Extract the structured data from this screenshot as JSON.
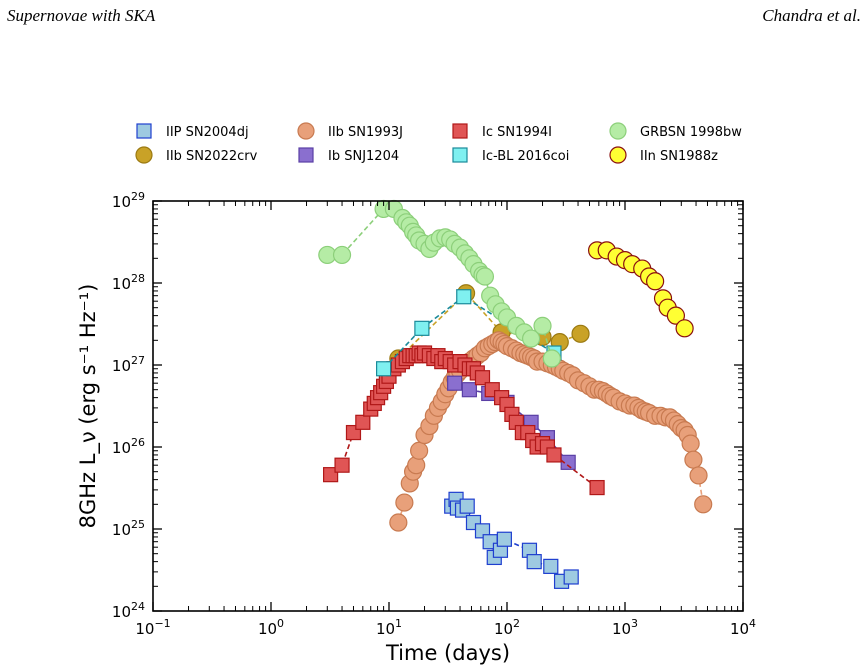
{
  "header": {
    "left": "Supernovae with SKA",
    "right": "Chandra et al."
  },
  "chart_data": {
    "type": "scatter",
    "title": "",
    "xlabel": "Time (days)",
    "ylabel": "8GHz L_ν (erg s⁻¹ Hz⁻¹)",
    "xscale": "log",
    "yscale": "log",
    "xlim": [
      0.1,
      10000
    ],
    "ylim": [
      1e+24,
      1e+29
    ],
    "x_ticks": [
      "10^-1",
      "10^0",
      "10^1",
      "10^2",
      "10^3",
      "10^4"
    ],
    "y_ticks": [
      "10^24",
      "10^25",
      "10^26",
      "10^27",
      "10^28",
      "10^29"
    ],
    "grid": false,
    "legend_position": "top",
    "series": [
      {
        "name": "IIP SN2004dj",
        "marker": "square",
        "color": "#9ecae1",
        "edge": "#1f3fcf",
        "line": "#1f3fcf",
        "x": [
          34,
          37,
          38,
          42,
          46,
          52,
          62,
          72,
          78,
          88,
          95,
          155,
          170,
          235,
          290,
          350
        ],
        "y": [
          1.9e+25,
          2.3e+25,
          1.8e+25,
          1.7e+25,
          1.9e+25,
          1.2e+25,
          9.5e+24,
          7e+24,
          4.5e+24,
          5.5e+24,
          7.5e+24,
          5.5e+24,
          4e+24,
          3.5e+24,
          2.3e+24,
          2.6e+24
        ]
      },
      {
        "name": "IIb SN2022crv",
        "marker": "circle",
        "color": "#c9a227",
        "edge": "#9b7a12",
        "line": "#c9a227",
        "x": [
          12,
          45,
          90,
          200,
          280,
          420
        ],
        "y": [
          1.2e+27,
          7.5e+27,
          2.5e+27,
          2.2e+27,
          1.9e+27,
          2.4e+27
        ]
      },
      {
        "name": "IIb SN1993J",
        "marker": "circle",
        "color": "#e8a07a",
        "edge": "#c87a50",
        "line": "#e8a07a",
        "x": [
          12,
          13.5,
          15,
          16,
          17,
          18,
          20,
          22,
          24,
          26,
          28,
          30,
          32,
          34,
          36,
          38,
          40,
          44,
          48,
          52,
          56,
          60,
          65,
          70,
          75,
          80,
          85,
          90,
          95,
          100,
          110,
          120,
          130,
          140,
          150,
          160,
          170,
          180,
          200,
          220,
          240,
          260,
          280,
          300,
          330,
          360,
          400,
          450,
          500,
          550,
          600,
          650,
          700,
          750,
          800,
          900,
          1000,
          1100,
          1200,
          1300,
          1400,
          1500,
          1600,
          1800,
          2000,
          2200,
          2400,
          2600,
          2800,
          3000,
          3200,
          3400,
          3600,
          3800,
          4200,
          4600
        ],
        "y": [
          1.2e+25,
          2.1e+25,
          3.6e+25,
          5e+25,
          6e+25,
          9e+25,
          1.4e+26,
          1.8e+26,
          2.4e+26,
          3e+26,
          3.6e+26,
          4.4e+26,
          5.2e+26,
          6.2e+26,
          7e+26,
          7.8e+26,
          8.5e+26,
          1e+27,
          1.1e+27,
          1.2e+27,
          1.3e+27,
          1.4e+27,
          1.6e+27,
          1.7e+27,
          1.8e+27,
          1.9e+27,
          2e+27,
          1.9e+27,
          1.8e+27,
          1.7e+27,
          1.6e+27,
          1.5e+27,
          1.4e+27,
          1.35e+27,
          1.3e+27,
          1.25e+27,
          1.2e+27,
          1.1e+27,
          1.1e+27,
          1.05e+27,
          1e+27,
          9.5e+26,
          9e+26,
          8.5e+26,
          8e+26,
          7.5e+26,
          6.5e+26,
          6e+26,
          5.5e+26,
          5e+26,
          5e+26,
          4.8e+26,
          4.5e+26,
          4.2e+26,
          4e+26,
          3.6e+26,
          3.4e+26,
          3.2e+26,
          3.2e+26,
          3e+26,
          2.8e+26,
          2.7e+26,
          2.6e+26,
          2.4e+26,
          2.4e+26,
          2.3e+26,
          2.3e+26,
          2.1e+26,
          1.9e+26,
          1.7e+26,
          1.6e+26,
          1.4e+26,
          1.1e+26,
          7e+25,
          4.5e+25,
          2e+25
        ]
      },
      {
        "name": "Ib SNJ1204",
        "marker": "square",
        "color": "#8a6fcf",
        "edge": "#5a3fa5",
        "line": "#5a3fa5",
        "x": [
          36,
          48,
          70,
          100,
          160,
          220,
          330
        ],
        "y": [
          6e+26,
          5e+26,
          4.5e+26,
          3.5e+26,
          2e+26,
          1.3e+26,
          6.5e+25
        ]
      },
      {
        "name": "Ic SN1994I",
        "marker": "square",
        "color": "#e05555",
        "edge": "#b01818",
        "line": "#b01818",
        "x": [
          3.2,
          4,
          5,
          6,
          7,
          7.5,
          8,
          8.5,
          9,
          9.5,
          10,
          11,
          12,
          13,
          14,
          15,
          16,
          17,
          18,
          19,
          20,
          22,
          24,
          26,
          28,
          30,
          33,
          36,
          40,
          44,
          48,
          52,
          56,
          62,
          75,
          90,
          100,
          110,
          120,
          135,
          150,
          165,
          180,
          200,
          220,
          250,
          580
        ],
        "y": [
          4.6e+25,
          6e+25,
          1.5e+26,
          2e+26,
          2.9e+26,
          3.4e+26,
          4e+26,
          4.6e+26,
          5.5e+26,
          6.3e+26,
          7.3e+26,
          9e+26,
          1e+27,
          1.1e+27,
          1.2e+27,
          1.3e+27,
          1.3e+27,
          1.3e+27,
          1.4e+27,
          1.3e+27,
          1.4e+27,
          1.3e+27,
          1.2e+27,
          1.3e+27,
          1.1e+27,
          1.2e+27,
          1.1e+27,
          1e+27,
          1.1e+27,
          1e+27,
          9e+26,
          9e+26,
          8e+26,
          7e+26,
          5e+26,
          4e+26,
          3.3e+26,
          2.5e+26,
          2e+26,
          1.5e+26,
          1.5e+26,
          1.2e+26,
          1e+26,
          1.1e+26,
          1e+26,
          8e+25,
          3.2e+25
        ]
      },
      {
        "name": "Ic-BL 2016coi",
        "marker": "square",
        "color": "#7ff0f0",
        "edge": "#1a8a9a",
        "line": "#1a8a9a",
        "x": [
          9,
          19,
          43,
          250
        ],
        "y": [
          9e+26,
          2.8e+27,
          6.8e+27,
          1.4e+27
        ]
      },
      {
        "name": "GRBSN 1998bw",
        "marker": "circle",
        "color": "#b5eca5",
        "edge": "#8ccf7a",
        "line": "#8ccf7a",
        "x": [
          3,
          4,
          9,
          11,
          13,
          14,
          15,
          16,
          17,
          18,
          20,
          22,
          24,
          27,
          30,
          33,
          36,
          40,
          44,
          48,
          52,
          58,
          62,
          65,
          72,
          80,
          90,
          100,
          120,
          140,
          160,
          200,
          240
        ],
        "y": [
          2.2e+28,
          2.2e+28,
          8e+28,
          8e+28,
          6.2e+28,
          5.5e+28,
          5e+28,
          4.2e+28,
          3.8e+28,
          3.3e+28,
          3e+28,
          2.6e+28,
          3.1e+28,
          3.5e+28,
          3.6e+28,
          3.4e+28,
          3e+28,
          2.7e+28,
          2.3e+28,
          2e+28,
          1.7e+28,
          1.4e+28,
          1.25e+28,
          1.2e+28,
          7e+27,
          5.5e+27,
          4.5e+27,
          3.8e+27,
          3e+27,
          2.5e+27,
          2.1e+27,
          3e+27,
          1.2e+27
        ]
      },
      {
        "name": "IIn SN1988z",
        "marker": "circle",
        "color": "#ffff33",
        "edge": "#8a1010",
        "line": "#8a1010",
        "x": [
          580,
          700,
          850,
          1000,
          1150,
          1400,
          1600,
          1800,
          2100,
          2300,
          2700,
          3200
        ],
        "y": [
          2.5e+28,
          2.5e+28,
          2.1e+28,
          1.9e+28,
          1.7e+28,
          1.5e+28,
          1.2e+28,
          1.05e+28,
          6.5e+27,
          5e+27,
          4e+27,
          2.8e+27
        ]
      }
    ]
  }
}
